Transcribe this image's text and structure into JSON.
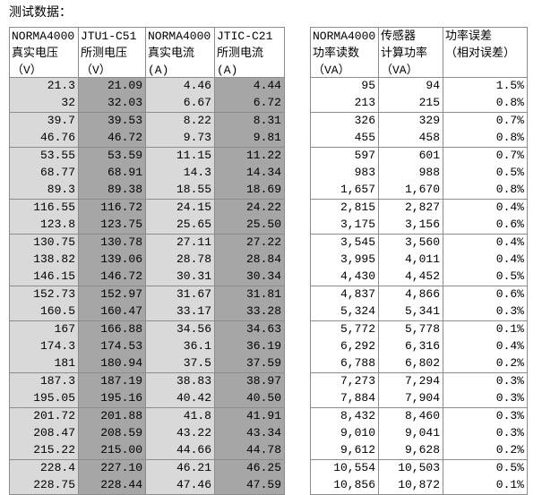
{
  "title": "测试数据：",
  "left_table": {
    "headers": [
      [
        "NORMA4000",
        "真实电压",
        "（V）"
      ],
      [
        "JTU1-C51",
        "所测电压",
        "（V）"
      ],
      [
        "NORMA4000",
        "真实电流",
        "(A)"
      ],
      [
        "JTIC-C21",
        "所测电流",
        "(A)"
      ]
    ],
    "rows": [
      [
        "21.3",
        "21.09",
        "4.46",
        "4.44"
      ],
      [
        "32",
        "32.03",
        "6.67",
        "6.72"
      ],
      [
        "39.7",
        "39.53",
        "8.22",
        "8.31"
      ],
      [
        "46.76",
        "46.72",
        "9.73",
        "9.81"
      ],
      [
        "53.55",
        "53.59",
        "11.15",
        "11.22"
      ],
      [
        "68.77",
        "68.91",
        "14.3",
        "14.34"
      ],
      [
        "89.3",
        "89.38",
        "18.55",
        "18.69"
      ],
      [
        "116.55",
        "116.72",
        "24.15",
        "24.22"
      ],
      [
        "123.8",
        "123.75",
        "25.65",
        "25.50"
      ],
      [
        "130.75",
        "130.78",
        "27.11",
        "27.22"
      ],
      [
        "138.82",
        "139.06",
        "28.78",
        "28.84"
      ],
      [
        "146.15",
        "146.72",
        "30.31",
        "30.34"
      ],
      [
        "152.73",
        "152.97",
        "31.67",
        "31.81"
      ],
      [
        "160.5",
        "160.47",
        "33.17",
        "33.28"
      ],
      [
        "167",
        "166.88",
        "34.56",
        "34.63"
      ],
      [
        "174.3",
        "174.53",
        "36.1",
        "36.19"
      ],
      [
        "181",
        "180.94",
        "37.5",
        "37.59"
      ],
      [
        "187.3",
        "187.19",
        "38.83",
        "38.97"
      ],
      [
        "195.05",
        "195.16",
        "40.42",
        "40.50"
      ],
      [
        "201.72",
        "201.88",
        "41.8",
        "41.91"
      ],
      [
        "208.47",
        "208.59",
        "43.22",
        "43.34"
      ],
      [
        "215.22",
        "215.00",
        "44.66",
        "44.78"
      ],
      [
        "228.4",
        "227.10",
        "46.21",
        "46.25"
      ],
      [
        "228.75",
        "228.44",
        "47.46",
        "47.59"
      ]
    ]
  },
  "right_table": {
    "headers": [
      [
        "NORMA4000",
        "功率读数",
        "（VA）"
      ],
      [
        "传感器",
        "计算功率",
        "（VA）"
      ],
      [
        "功率误差",
        "（相对误差）"
      ]
    ],
    "rows": [
      [
        "95",
        "94",
        "1.5%"
      ],
      [
        "213",
        "215",
        "0.8%"
      ],
      [
        "326",
        "329",
        "0.7%"
      ],
      [
        "455",
        "458",
        "0.8%"
      ],
      [
        "597",
        "601",
        "0.7%"
      ],
      [
        "983",
        "988",
        "0.5%"
      ],
      [
        "1,657",
        "1,670",
        "0.8%"
      ],
      [
        "2,815",
        "2,827",
        "0.4%"
      ],
      [
        "3,175",
        "3,156",
        "0.6%"
      ],
      [
        "3,545",
        "3,560",
        "0.4%"
      ],
      [
        "3,995",
        "4,011",
        "0.4%"
      ],
      [
        "4,430",
        "4,452",
        "0.5%"
      ],
      [
        "4,837",
        "4,866",
        "0.6%"
      ],
      [
        "5,324",
        "5,341",
        "0.3%"
      ],
      [
        "5,772",
        "5,778",
        "0.1%"
      ],
      [
        "6,292",
        "6,316",
        "0.4%"
      ],
      [
        "6,788",
        "6,802",
        "0.2%"
      ],
      [
        "7,273",
        "7,294",
        "0.3%"
      ],
      [
        "7,884",
        "7,904",
        "0.3%"
      ],
      [
        "8,432",
        "8,460",
        "0.3%"
      ],
      [
        "9,010",
        "9,041",
        "0.3%"
      ],
      [
        "9,612",
        "9,628",
        "0.2%"
      ],
      [
        "10,554",
        "10,503",
        "0.5%"
      ],
      [
        "10,856",
        "10,872",
        "0.1%"
      ]
    ]
  }
}
